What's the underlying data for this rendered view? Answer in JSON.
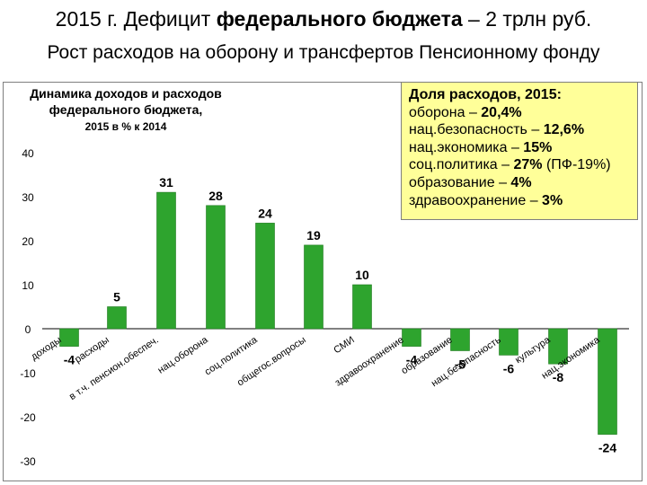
{
  "header": {
    "title_prefix": "2015 г. Дефицит ",
    "title_bold": "федерального бюджета",
    "title_suffix": " – 2 трлн руб.",
    "subtitle": "Рост расходов на оборону и трансфертов Пенсионному фонду"
  },
  "chart_title": {
    "line1": "Динамика доходов и расходов",
    "line2": "федерального бюджета,",
    "line3": "2015 в % к 2014"
  },
  "info_box": {
    "heading": "Доля расходов, 2015:",
    "lines": [
      {
        "label": "оборона – ",
        "value": "20,4%"
      },
      {
        "label": "нац.безопасность – ",
        "value": "12,6%"
      },
      {
        "label": "нац.экономика – ",
        "value": "15%"
      },
      {
        "label": "соц.политика – ",
        "value": "27%",
        "note": " (ПФ-19%)"
      },
      {
        "label": "образование – ",
        "value": "4%"
      },
      {
        "label": "здравоохранение – ",
        "value": "3%"
      }
    ]
  },
  "colors": {
    "bar": "#2ea42e",
    "info_bg": "#ffff99"
  },
  "chart_data": {
    "type": "bar",
    "categories": [
      "доходы",
      "расходы",
      "в т.ч. пенсион.обеспеч.",
      "нац.оборона",
      "соц.политика",
      "общегос.вопросы",
      "СМИ",
      "здравоохранение",
      "образование",
      "нац.безопасность",
      "культура",
      "нац.экономика"
    ],
    "values": [
      -4,
      5,
      31,
      28,
      24,
      19,
      10,
      -4,
      -5,
      -6,
      -8,
      -24
    ],
    "value_labels": [
      "-4",
      "5",
      "31",
      "28",
      "24",
      "19",
      "10",
      "-4",
      "-5",
      "-6",
      "-8",
      "-24"
    ],
    "yticks": [
      "40",
      "30",
      "20",
      "10",
      "0",
      "-10",
      "-20",
      "-30"
    ],
    "ylim": [
      -30,
      40
    ],
    "grid": false,
    "legend": "none"
  }
}
